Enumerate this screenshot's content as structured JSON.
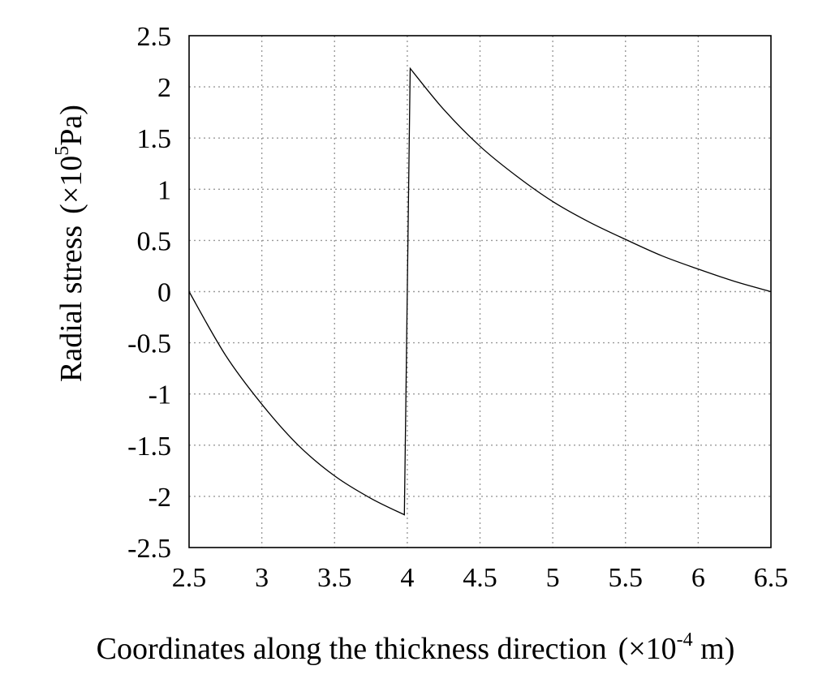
{
  "chart_data": {
    "type": "line",
    "xlabel": "Coordinates along the thickness direction",
    "xlabel_unit": {
      "open": "(×10",
      "exp": "-4",
      "close": " m)"
    },
    "ylabel": "Radial stress",
    "ylabel_unit": {
      "open": "(×10",
      "exp": "5",
      "close": "Pa)"
    },
    "xlim": [
      2.5,
      6.5
    ],
    "ylim": [
      -2.5,
      2.5
    ],
    "xticks": [
      "2.5",
      "3",
      "3.5",
      "4",
      "4.5",
      "5",
      "5.5",
      "6",
      "6.5"
    ],
    "yticks": [
      "2.5",
      "2",
      "1.5",
      "1",
      "0.5",
      "0",
      "-0.5",
      "-1",
      "-1.5",
      "-2",
      "-2.5"
    ],
    "grid": true,
    "series": [
      {
        "x": [
          2.5,
          2.75,
          3.0,
          3.25,
          3.5,
          3.75,
          3.98,
          4.0,
          4.02,
          4.25,
          4.5,
          4.75,
          5.0,
          5.25,
          5.5,
          5.75,
          6.0,
          6.25,
          6.5
        ],
        "y": [
          0.0,
          -0.62,
          -1.1,
          -1.5,
          -1.8,
          -2.02,
          -2.18,
          0.0,
          2.18,
          1.78,
          1.42,
          1.13,
          0.88,
          0.68,
          0.51,
          0.35,
          0.22,
          0.1,
          0.0
        ]
      }
    ]
  }
}
